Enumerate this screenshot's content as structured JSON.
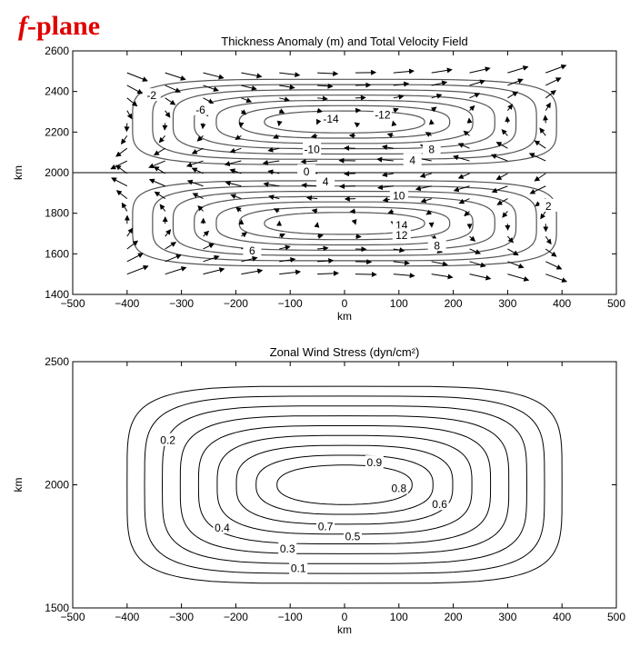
{
  "heading": {
    "f": "f",
    "rest": "-plane"
  },
  "chart_data": [
    {
      "type": "contour",
      "title": "Thickness Anomaly (m) and Total Velocity Field",
      "xlabel": "km",
      "ylabel": "km",
      "xlim": [
        -500,
        500
      ],
      "ylim": [
        1400,
        2600
      ],
      "xticks": [
        -500,
        -400,
        -300,
        -200,
        -100,
        0,
        100,
        200,
        300,
        400,
        500
      ],
      "yticks": [
        1400,
        1600,
        1800,
        2000,
        2200,
        2400,
        2600
      ],
      "grid": false,
      "center_line_y": 2000,
      "gyres": [
        {
          "center": [
            0,
            2250
          ],
          "sign": -1,
          "levels": [
            -2,
            -4,
            -6,
            -8,
            -10,
            -12,
            -14
          ]
        },
        {
          "center": [
            0,
            1750
          ],
          "sign": 1,
          "levels": [
            2,
            4,
            6,
            8,
            10,
            12,
            14
          ]
        }
      ],
      "contour_labels": [
        {
          "text": "-2",
          "x": -355,
          "y": 2380
        },
        {
          "text": "-6",
          "x": -265,
          "y": 2310
        },
        {
          "text": "-14",
          "x": -25,
          "y": 2265
        },
        {
          "text": "-12",
          "x": 70,
          "y": 2285
        },
        {
          "text": "-10",
          "x": -60,
          "y": 2115
        },
        {
          "text": "8",
          "x": 160,
          "y": 2115
        },
        {
          "text": "4",
          "x": 125,
          "y": 2060
        },
        {
          "text": "0",
          "x": -70,
          "y": 2005
        },
        {
          "text": "4",
          "x": -35,
          "y": 1955
        },
        {
          "text": "10",
          "x": 100,
          "y": 1885
        },
        {
          "text": "14",
          "x": 105,
          "y": 1740
        },
        {
          "text": "12",
          "x": 105,
          "y": 1690
        },
        {
          "text": "8",
          "x": 170,
          "y": 1640
        },
        {
          "text": "6",
          "x": -170,
          "y": 1615
        },
        {
          "text": "2",
          "x": 375,
          "y": 1835
        }
      ]
    },
    {
      "type": "contour",
      "title": "Zonal Wind Stress (dyn/cm²)",
      "xlabel": "km",
      "ylabel": "km",
      "xlim": [
        -500,
        500
      ],
      "ylim": [
        1500,
        2500
      ],
      "xticks": [
        -500,
        -400,
        -300,
        -200,
        -100,
        0,
        100,
        200,
        300,
        400,
        500
      ],
      "yticks": [
        1500,
        2000,
        2500
      ],
      "grid": false,
      "center": [
        0,
        2000
      ],
      "levels": [
        0.1,
        0.2,
        0.3,
        0.4,
        0.5,
        0.6,
        0.7,
        0.8,
        0.9
      ],
      "contour_labels": [
        {
          "text": "0.2",
          "x": -325,
          "y": 2180
        },
        {
          "text": "0.9",
          "x": 55,
          "y": 2090
        },
        {
          "text": "0.8",
          "x": 100,
          "y": 1985
        },
        {
          "text": "0.6",
          "x": 175,
          "y": 1920
        },
        {
          "text": "0.7",
          "x": -35,
          "y": 1830
        },
        {
          "text": "0.4",
          "x": -225,
          "y": 1825
        },
        {
          "text": "0.5",
          "x": 15,
          "y": 1790
        },
        {
          "text": "0.3",
          "x": -105,
          "y": 1740
        },
        {
          "text": "0.1",
          "x": -85,
          "y": 1660
        }
      ]
    }
  ]
}
